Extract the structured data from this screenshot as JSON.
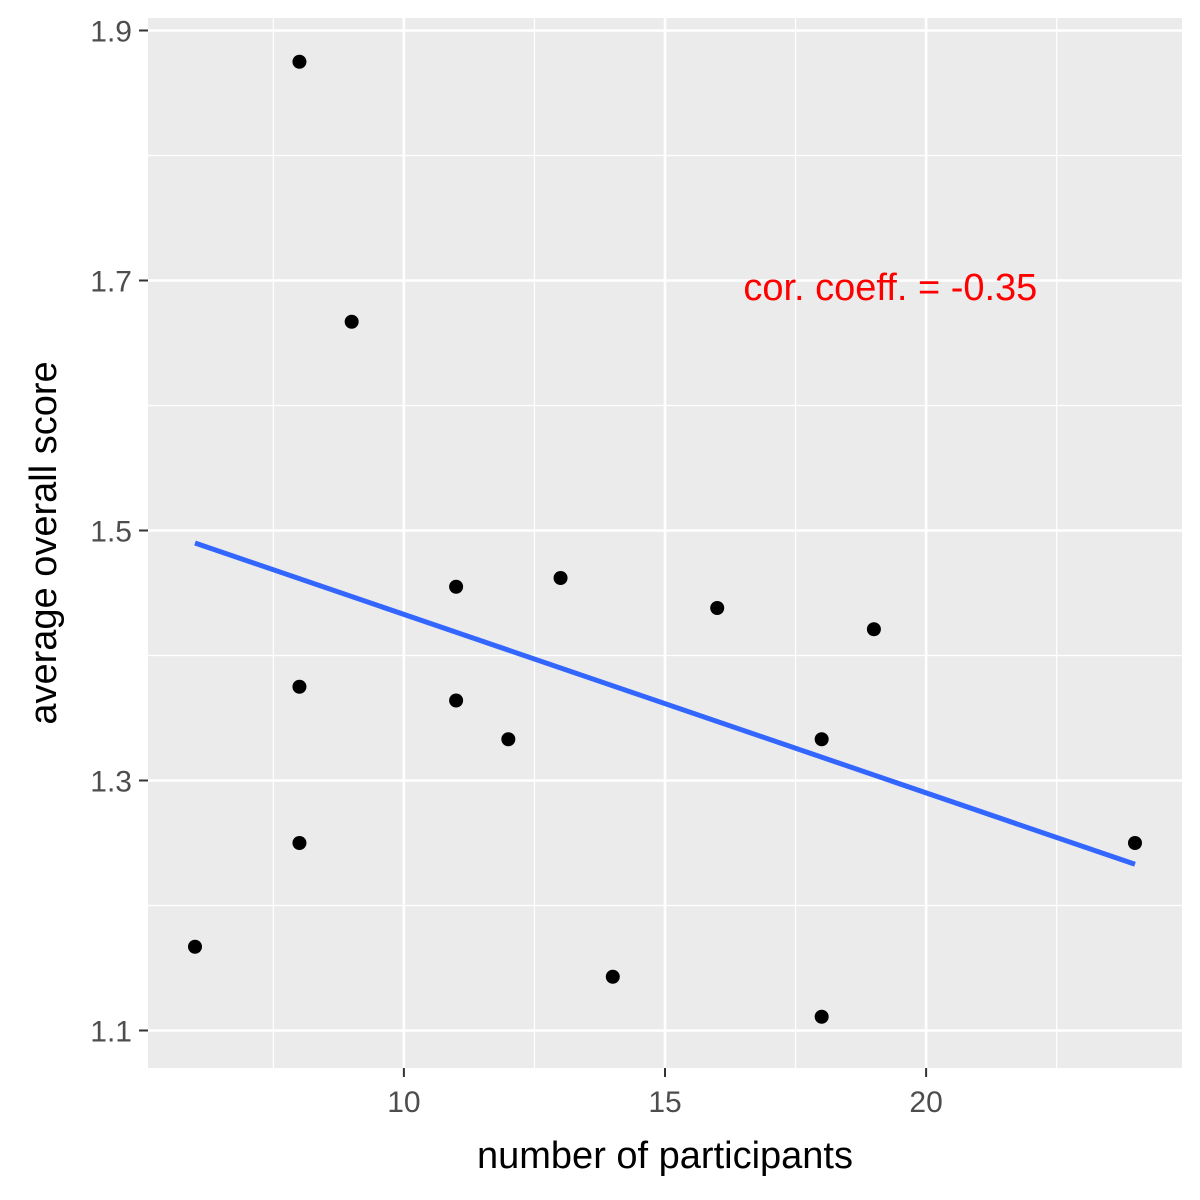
{
  "chart_data": {
    "type": "scatter",
    "xlabel": "number of participants",
    "ylabel": "average overall score",
    "xlim": [
      5.1,
      24.9
    ],
    "ylim": [
      1.07,
      1.91
    ],
    "x_ticks": [
      10,
      15,
      20
    ],
    "x_tick_labels": [
      "10",
      "15",
      "20"
    ],
    "x_minor_ticks": [
      7.5,
      12.5,
      17.5,
      22.5
    ],
    "y_ticks": [
      1.1,
      1.3,
      1.5,
      1.7,
      1.9
    ],
    "y_tick_labels": [
      "1.1",
      "1.3",
      "1.5",
      "1.7",
      "1.9"
    ],
    "y_minor_ticks": [
      1.2,
      1.4,
      1.6,
      1.8
    ],
    "grid": true,
    "points": [
      {
        "x": 6,
        "y": 1.167
      },
      {
        "x": 8,
        "y": 1.875
      },
      {
        "x": 8,
        "y": 1.375
      },
      {
        "x": 8,
        "y": 1.25
      },
      {
        "x": 9,
        "y": 1.667
      },
      {
        "x": 11,
        "y": 1.455
      },
      {
        "x": 11,
        "y": 1.364
      },
      {
        "x": 12,
        "y": 1.333
      },
      {
        "x": 13,
        "y": 1.462
      },
      {
        "x": 14,
        "y": 1.143
      },
      {
        "x": 16,
        "y": 1.438
      },
      {
        "x": 18,
        "y": 1.333
      },
      {
        "x": 18,
        "y": 1.111
      },
      {
        "x": 19,
        "y": 1.421
      },
      {
        "x": 24,
        "y": 1.25
      }
    ],
    "trend_line": {
      "x": [
        6,
        24
      ],
      "y": [
        1.49,
        1.233
      ]
    },
    "annotation": {
      "text": "cor. coeff. = -0.35",
      "x": 16.5,
      "y": 1.695
    },
    "colors": {
      "panel": "#ebebeb",
      "grid": "#ffffff",
      "points": "#000000",
      "trend_line": "#3366ff",
      "annotation": "#ff0000"
    }
  }
}
